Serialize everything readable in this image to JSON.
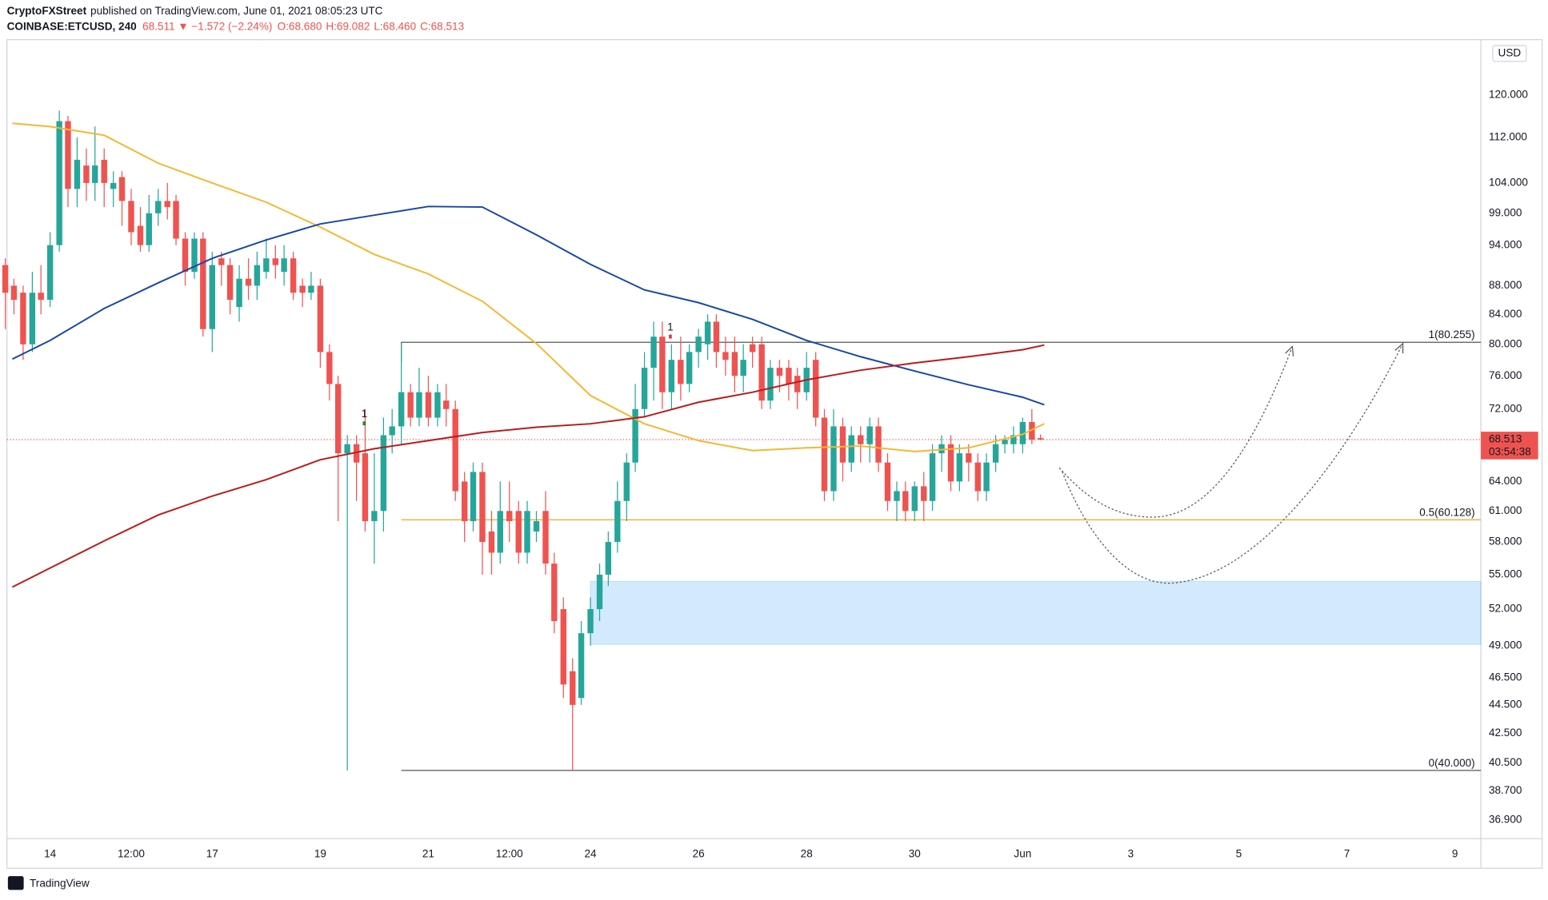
{
  "header": {
    "author": "CryptoFXStreet",
    "published": "published on TradingView.com, June 01, 2021 08:05:23 UTC",
    "symbol": "COINBASE:ETCUSD, 240",
    "last": "68.511",
    "change": "−1.572 (−2.24%)",
    "ohlc": [
      "O:68.680",
      "H:69.082",
      "L:68.460",
      "C:68.513"
    ],
    "currency": "USD"
  },
  "footer": {
    "brand": "TradingView"
  },
  "chart_data": {
    "type": "candlestick",
    "xlim": [
      13.2,
      40.48
    ],
    "ylim": [
      35.8,
      131.3
    ],
    "log_scale": true,
    "grid": false,
    "xticks": [
      14,
      {
        "value": 15.5,
        "label": "12:00"
      },
      17,
      19,
      21,
      {
        "value": 22.5,
        "label": "12:00"
      },
      24,
      26,
      28,
      30,
      {
        "value": 32,
        "label": "Jun"
      },
      {
        "value": 34,
        "label": "3"
      },
      {
        "value": 36,
        "label": "5"
      },
      {
        "value": 38,
        "label": "7"
      },
      {
        "value": 40,
        "label": "9"
      }
    ],
    "yticks": [
      {
        "value": 36.9,
        "label": "36.900"
      },
      {
        "value": 38.7,
        "label": "38.700"
      },
      {
        "value": 40.5,
        "label": "40.500"
      },
      {
        "value": 42.5,
        "label": "42.500"
      },
      {
        "value": 44.5,
        "label": "44.500"
      },
      {
        "value": 46.5,
        "label": "46.500"
      },
      {
        "value": 49,
        "label": "49.000"
      },
      {
        "value": 52,
        "label": "52.000"
      },
      {
        "value": 55,
        "label": "55.000"
      },
      {
        "value": 58,
        "label": "58.000"
      },
      {
        "value": 61,
        "label": "61.000"
      },
      {
        "value": 64,
        "label": "64.000"
      },
      {
        "value": 72,
        "label": "72.000"
      },
      {
        "value": 76,
        "label": "76.000"
      },
      {
        "value": 80,
        "label": "80.000"
      },
      {
        "value": 84,
        "label": "84.000"
      },
      {
        "value": 88,
        "label": "88.000"
      },
      {
        "value": 94,
        "label": "94.000"
      },
      {
        "value": 99,
        "label": "99.000"
      },
      {
        "value": 104,
        "label": "104.000"
      },
      {
        "value": 112,
        "label": "112.000"
      },
      {
        "value": 120,
        "label": "120.000"
      }
    ],
    "candles": {
      "up_color": "#26a69a",
      "down_color": "#ef5350",
      "x": [
        13.17,
        13.33,
        13.5,
        13.67,
        13.83,
        14,
        14.17,
        14.33,
        14.5,
        14.67,
        14.83,
        15,
        15.17,
        15.33,
        15.5,
        15.67,
        15.83,
        16,
        16.17,
        16.33,
        16.5,
        16.67,
        16.83,
        17,
        17.17,
        17.33,
        17.5,
        17.67,
        17.83,
        18,
        18.17,
        18.33,
        18.5,
        18.67,
        18.83,
        19,
        19.17,
        19.33,
        19.5,
        19.67,
        19.83,
        20,
        20.17,
        20.33,
        20.5,
        20.67,
        20.83,
        21,
        21.17,
        21.33,
        21.5,
        21.67,
        21.83,
        22,
        22.17,
        22.33,
        22.5,
        22.67,
        22.83,
        23,
        23.17,
        23.33,
        23.5,
        23.67,
        23.83,
        24,
        24.17,
        24.33,
        24.5,
        24.67,
        24.83,
        25,
        25.17,
        25.33,
        25.5,
        25.67,
        25.83,
        26,
        26.17,
        26.33,
        26.5,
        26.67,
        26.83,
        27,
        27.17,
        27.33,
        27.5,
        27.67,
        27.83,
        28,
        28.17,
        28.33,
        28.5,
        28.67,
        28.83,
        29,
        29.17,
        29.33,
        29.5,
        29.67,
        29.83,
        30,
        30.17,
        30.33,
        30.5,
        30.67,
        30.83,
        31,
        31.17,
        31.33,
        31.5,
        31.67,
        31.83,
        32,
        32.17,
        32.33
      ],
      "open": [
        91,
        88,
        87,
        80,
        87,
        86,
        94,
        115,
        103,
        107,
        104,
        108,
        103,
        105,
        101,
        97,
        94,
        99,
        101,
        101,
        95,
        90,
        95,
        82,
        92,
        91,
        85,
        89,
        88,
        90,
        92,
        90,
        92,
        88,
        87,
        88,
        79,
        75,
        67,
        68,
        67,
        60,
        61,
        69,
        70,
        74,
        71,
        74,
        71,
        73,
        72,
        64,
        60,
        65,
        59,
        57,
        61,
        61,
        57,
        59,
        61,
        56,
        52,
        47,
        45,
        50,
        52,
        55,
        58,
        62,
        66,
        72,
        77,
        81,
        74,
        78,
        75,
        79,
        80,
        83,
        79,
        79,
        76,
        80,
        80,
        73,
        77,
        77,
        76,
        74,
        78,
        71,
        63,
        70,
        66,
        69,
        68,
        70,
        66,
        62,
        63,
        61,
        63.5,
        62,
        67,
        68,
        64,
        67,
        66,
        63,
        66,
        68,
        68,
        68,
        70.5,
        68.68
      ],
      "high": [
        92,
        89,
        88,
        90,
        91,
        96,
        117,
        116,
        112,
        110,
        114,
        110,
        106,
        106,
        103,
        100,
        102,
        103,
        104,
        102,
        96,
        96,
        96,
        93,
        93,
        92,
        91,
        92,
        93,
        95,
        94,
        94,
        93,
        89,
        90,
        89,
        80,
        76,
        69,
        69,
        72,
        67,
        71,
        72,
        80,
        75,
        77,
        76,
        75,
        75,
        73,
        65,
        66,
        66,
        61,
        64,
        64,
        62,
        62,
        61,
        63,
        57,
        53,
        48,
        51,
        53,
        56,
        59,
        64,
        67,
        75,
        79,
        83,
        83,
        80,
        81,
        80,
        82,
        84,
        84,
        81,
        81,
        80,
        81,
        81,
        78,
        78,
        78,
        77,
        79,
        79,
        72,
        72,
        71,
        70,
        70,
        71,
        71,
        67,
        64,
        64,
        64,
        65,
        68,
        69,
        69,
        68,
        68,
        67,
        67,
        69,
        69,
        70,
        71,
        72,
        69.082
      ],
      "low": [
        82,
        84,
        78,
        79,
        84,
        85,
        93,
        100,
        100,
        101,
        101,
        100,
        100,
        97,
        94,
        93,
        93,
        97,
        98,
        94,
        88,
        89,
        81,
        79,
        88,
        84,
        83,
        86,
        86,
        89,
        89,
        88,
        86,
        85,
        86,
        77,
        73,
        60,
        40,
        62,
        59,
        56,
        59,
        67,
        68,
        70,
        70,
        70,
        70,
        70,
        62,
        58,
        59,
        55,
        55,
        56,
        58,
        56,
        56,
        58,
        55,
        50,
        45,
        40,
        44.5,
        49,
        51,
        54,
        57,
        60,
        65,
        71,
        73,
        72,
        72,
        73,
        74,
        77,
        78,
        77,
        76,
        74,
        74,
        77,
        72,
        72,
        74,
        73,
        72,
        73,
        70,
        62,
        62,
        64,
        65,
        66,
        66,
        65,
        61,
        60,
        60,
        60,
        60,
        61,
        65,
        63,
        63,
        64,
        62,
        62,
        65,
        67,
        67,
        67,
        68,
        68.46
      ],
      "close": [
        87,
        86,
        80,
        87,
        86,
        94,
        115,
        103,
        108,
        104,
        107,
        104,
        104,
        101,
        96,
        94,
        99,
        101,
        100,
        95,
        90,
        95,
        82,
        91,
        91,
        86,
        89,
        88,
        91,
        92,
        91,
        92,
        87,
        87,
        88,
        79,
        75,
        67,
        68,
        66,
        60,
        61,
        69,
        70,
        74,
        71,
        74,
        71,
        74,
        72,
        63,
        60,
        65,
        58,
        57,
        61,
        60,
        57,
        61,
        60,
        56,
        51,
        46,
        44.5,
        50,
        52,
        55,
        58,
        62,
        66,
        72,
        77,
        81,
        74,
        78,
        75,
        79,
        81,
        83,
        79,
        78,
        76,
        78,
        79,
        73,
        77,
        76,
        75,
        74,
        77,
        71,
        63,
        70,
        66,
        69,
        68,
        70,
        66,
        62,
        63,
        61,
        63.5,
        62,
        67,
        68,
        64,
        67,
        66,
        63,
        66,
        68,
        68.5,
        69,
        70.5,
        68.5,
        68.513
      ]
    },
    "moving_averages": [
      {
        "color": "#f5b731",
        "x": [
          13.3,
          14,
          15,
          16,
          17,
          18,
          19,
          20,
          21,
          22,
          23,
          24,
          25,
          26,
          27,
          28,
          29,
          30,
          31,
          32,
          32.4
        ],
        "values": [
          114.6,
          114.0,
          112.4,
          107.4,
          104.0,
          100.8,
          96.8,
          92.6,
          89.7,
          85.8,
          80.1,
          73.6,
          70.3,
          68.4,
          67.3,
          67.6,
          67.8,
          67.2,
          67.6,
          69.1,
          70.3
        ]
      },
      {
        "color": "#1747a6",
        "x": [
          13.3,
          14,
          15,
          16,
          17,
          18,
          19,
          20,
          21,
          22,
          23,
          24,
          25,
          26,
          27,
          28,
          29,
          30,
          31,
          32,
          32.4
        ],
        "values": [
          78.1,
          80.5,
          84.8,
          88.4,
          92.0,
          94.8,
          97.3,
          98.7,
          100.1,
          100.0,
          95.6,
          91.1,
          87.4,
          85.6,
          83.3,
          80.5,
          78.4,
          76.6,
          74.9,
          73.4,
          72.5
        ]
      },
      {
        "color": "#b71c1c",
        "x": [
          13.3,
          14,
          15,
          16,
          17,
          18,
          19,
          20,
          21,
          22,
          23,
          24,
          25,
          26,
          27,
          28,
          29,
          30,
          31,
          32,
          32.4
        ],
        "values": [
          53.9,
          55.6,
          58.1,
          60.6,
          62.5,
          64.2,
          66.3,
          67.5,
          68.4,
          69.3,
          69.9,
          70.3,
          71.1,
          72.8,
          74.0,
          75.5,
          76.7,
          77.6,
          78.4,
          79.3,
          79.9
        ]
      }
    ],
    "fib_start": 20.5,
    "fib_levels": [
      {
        "value": 80.255,
        "label": "1(80.255)",
        "color": "#555555"
      },
      {
        "value": 60.128,
        "label": "0.5(60.128)",
        "color": "#f5a623"
      },
      {
        "value": 40,
        "label": "0(40.000)",
        "color": "#555555"
      }
    ],
    "zone": {
      "x0": 24,
      "low": 49.1,
      "high": 54.4,
      "color": "rgba(33,150,243,0.2)"
    },
    "last_price": 68.513,
    "countdown": "03:54:38",
    "price_color": "#ef5350",
    "annotations": [
      {
        "text": "1",
        "color": "#2e7d32"
      },
      {
        "text": "1",
        "color": "#e53935"
      }
    ]
  }
}
